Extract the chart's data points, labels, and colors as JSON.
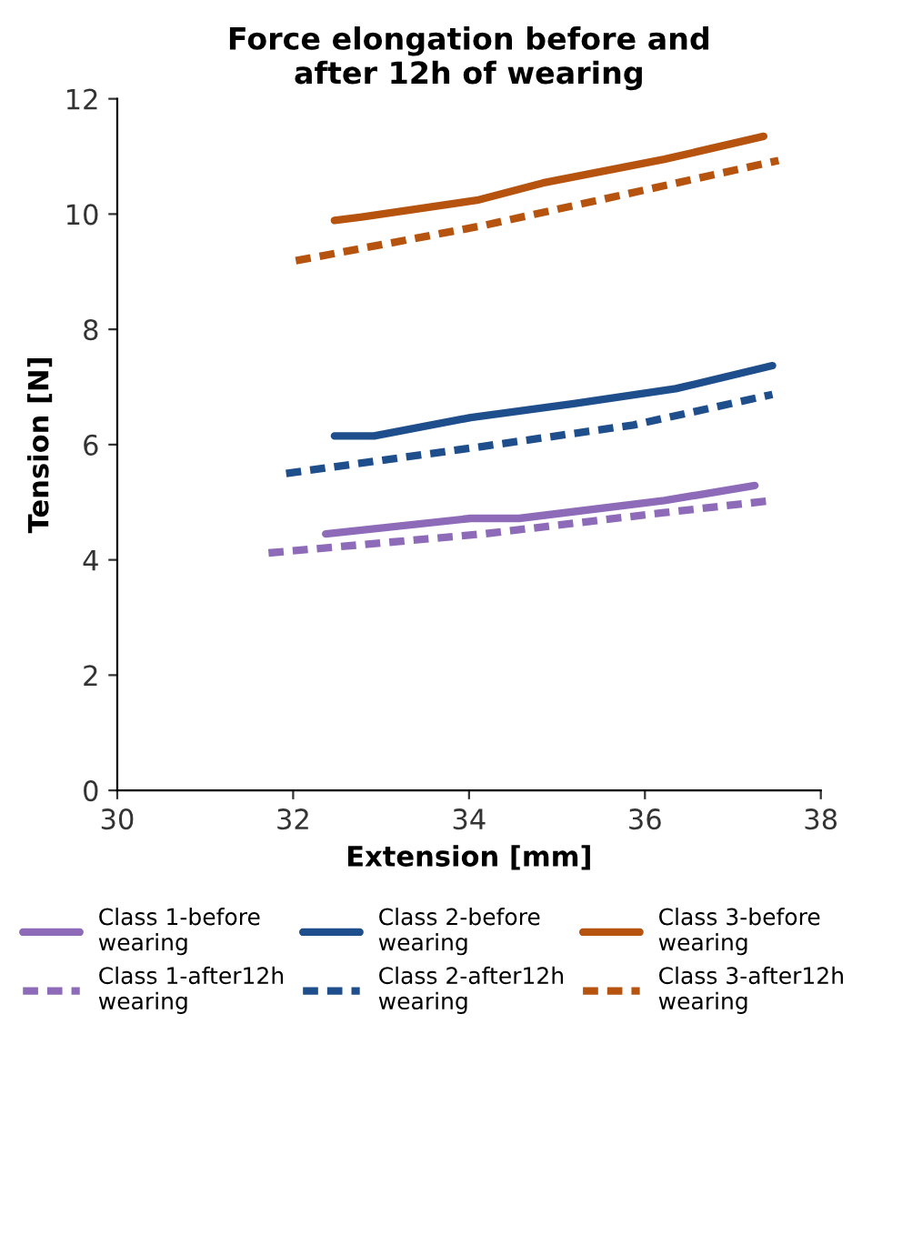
{
  "chart_data": {
    "type": "line",
    "title": "Force elongation before and\nafter 12h of wearing",
    "xlabel": "Extension [mm]",
    "ylabel": "Tension [N]",
    "xlim": [
      30,
      38
    ],
    "xticks": [
      30,
      32,
      34,
      36,
      38
    ],
    "ylim": [
      0,
      12
    ],
    "yticks": [
      0,
      2,
      4,
      6,
      8,
      10,
      12
    ],
    "grid": false,
    "legend": "bottom",
    "marker": "none",
    "series": [
      {
        "name": "Class 1-before\nwearing",
        "color": "#8e6bb8",
        "line_style": "solid",
        "x": [
          32.37,
          34.02,
          34.57,
          36.22,
          37.25
        ],
        "values": [
          4.45,
          4.72,
          4.72,
          5.03,
          5.29
        ]
      },
      {
        "name": "Class 1-after12h\nwearing",
        "color": "#8e6bb8",
        "line_style": "dashed",
        "x": [
          31.72,
          34.16,
          36.22,
          37.45
        ],
        "values": [
          4.12,
          4.45,
          4.82,
          5.03
        ]
      },
      {
        "name": "Class 2-before\nwearing",
        "color": "#1f4e8c",
        "line_style": "solid",
        "x": [
          32.47,
          32.92,
          34.02,
          35.19,
          36.35,
          37.45
        ],
        "values": [
          6.15,
          6.15,
          6.47,
          6.71,
          6.97,
          7.37
        ]
      },
      {
        "name": "Class 2-after12h\nwearing",
        "color": "#1f4e8c",
        "line_style": "dashed",
        "x": [
          31.92,
          34.16,
          35.87,
          37.45
        ],
        "values": [
          5.5,
          5.97,
          6.34,
          6.87
        ]
      },
      {
        "name": "Class 3-before\nwearing",
        "color": "#b5530f",
        "line_style": "solid",
        "x": [
          32.47,
          32.78,
          34.09,
          34.84,
          36.22,
          37.35
        ],
        "values": [
          9.89,
          9.95,
          10.24,
          10.54,
          10.95,
          11.35
        ]
      },
      {
        "name": "Class 3-after12h\nwearing",
        "color": "#b5530f",
        "line_style": "dashed",
        "x": [
          32.03,
          34.16,
          37.52
        ],
        "values": [
          9.19,
          9.8,
          10.93
        ]
      }
    ]
  }
}
